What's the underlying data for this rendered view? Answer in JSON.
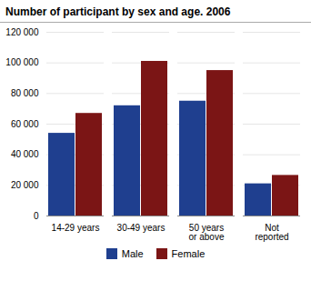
{
  "chart_data": {
    "type": "bar",
    "title": "Number of participant by sex and age. 2006",
    "categories": [
      "14-29 years",
      "30-49 years",
      "50 years\nor above",
      "Not\nreported"
    ],
    "series": [
      {
        "name": "Male",
        "color": "#1F3F8F",
        "values": [
          54000,
          72000,
          75000,
          21000
        ]
      },
      {
        "name": "Female",
        "color": "#7B1515",
        "values": [
          67000,
          101000,
          95000,
          26500
        ]
      }
    ],
    "ylim": [
      0,
      120000
    ],
    "yticks": [
      0,
      {
        "value": 20000,
        "label": "20 000"
      },
      {
        "value": 40000,
        "label": "40 000"
      },
      {
        "value": 60000,
        "label": "60 000"
      },
      {
        "value": 80000,
        "label": "80 000"
      },
      {
        "value": 100000,
        "label": "100 000"
      },
      {
        "value": 120000,
        "label": "120 000"
      }
    ],
    "grid": true,
    "legend": "bottom"
  }
}
